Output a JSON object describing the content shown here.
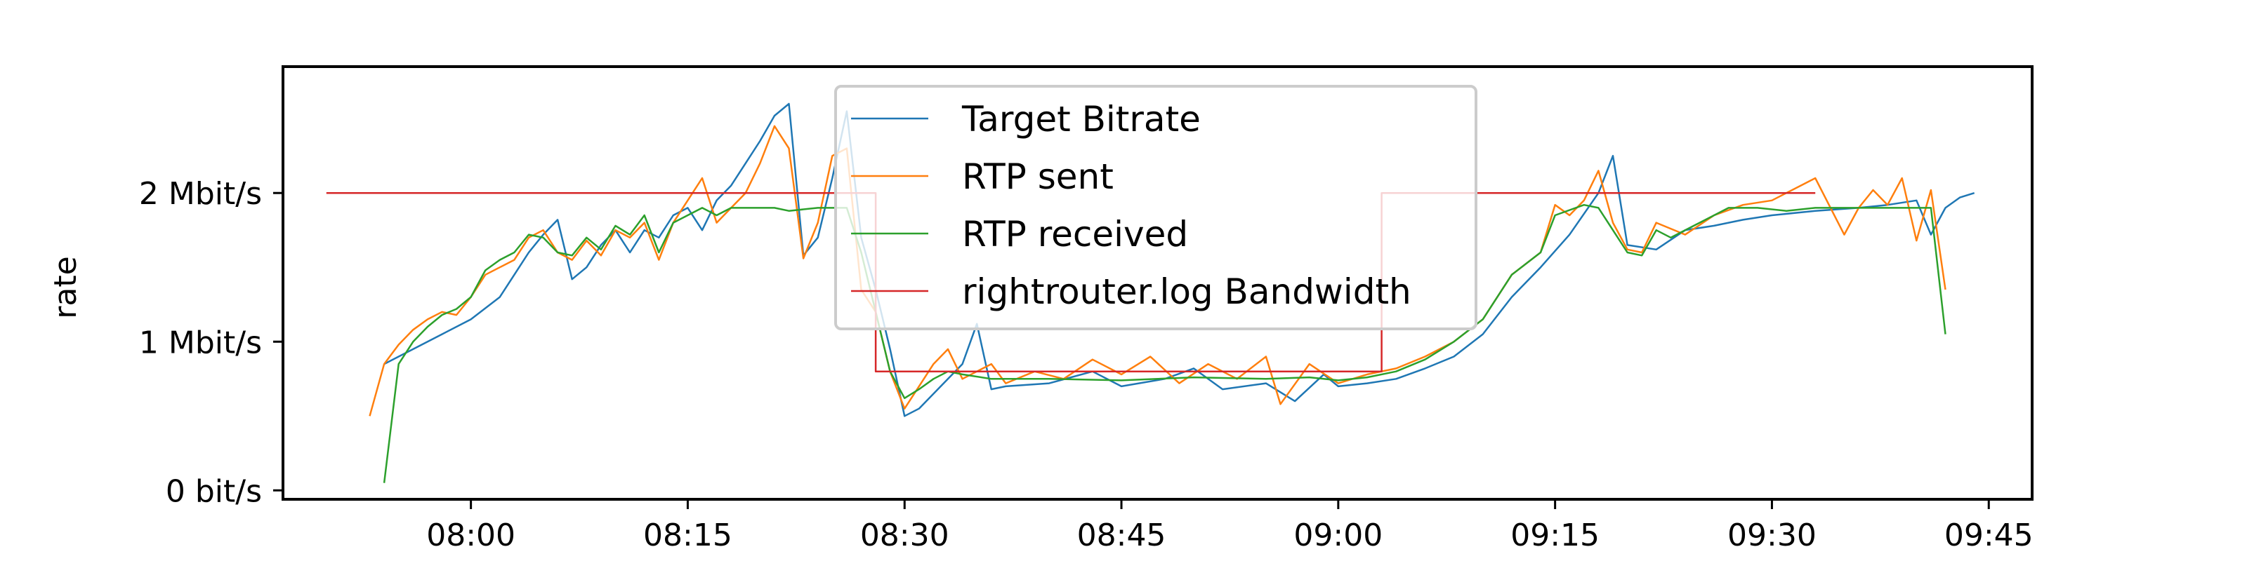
{
  "chart_data": {
    "type": "line",
    "title": "",
    "xlabel": "",
    "ylabel": "rate",
    "x_unit": "time (HH:MM)",
    "xlim": [
      "07:47",
      "09:48"
    ],
    "ylim": [
      -0.06,
      2.85
    ],
    "xticks": [
      {
        "t": "08:00",
        "label": "08:00"
      },
      {
        "t": "08:15",
        "label": "08:15"
      },
      {
        "t": "08:30",
        "label": "08:30"
      },
      {
        "t": "08:45",
        "label": "08:45"
      },
      {
        "t": "09:00",
        "label": "09:00"
      },
      {
        "t": "09:15",
        "label": "09:15"
      },
      {
        "t": "09:30",
        "label": "09:30"
      },
      {
        "t": "09:45",
        "label": "09:45"
      }
    ],
    "yticks": [
      {
        "v": 0,
        "label": "0 bit/s"
      },
      {
        "v": 1,
        "label": "1 Mbit/s"
      },
      {
        "v": 2,
        "label": "2 Mbit/s"
      }
    ],
    "grid": false,
    "legend": {
      "position": "top-center"
    },
    "series": [
      {
        "name": "Target Bitrate",
        "color": "#1f77b4",
        "points": [
          [
            "07:54",
            0.85
          ],
          [
            "07:56",
            0.95
          ],
          [
            "07:58",
            1.05
          ],
          [
            "08:00",
            1.15
          ],
          [
            "08:02",
            1.3
          ],
          [
            "08:03",
            1.45
          ],
          [
            "08:04",
            1.6
          ],
          [
            "08:05",
            1.72
          ],
          [
            "08:06",
            1.82
          ],
          [
            "08:07",
            1.42
          ],
          [
            "08:08",
            1.5
          ],
          [
            "08:09",
            1.65
          ],
          [
            "08:10",
            1.75
          ],
          [
            "08:11",
            1.6
          ],
          [
            "08:12",
            1.75
          ],
          [
            "08:13",
            1.7
          ],
          [
            "08:14",
            1.85
          ],
          [
            "08:15",
            1.9
          ],
          [
            "08:16",
            1.75
          ],
          [
            "08:17",
            1.95
          ],
          [
            "08:18",
            2.05
          ],
          [
            "08:19",
            2.2
          ],
          [
            "08:20",
            2.35
          ],
          [
            "08:21",
            2.52
          ],
          [
            "08:22",
            2.6
          ],
          [
            "08:23",
            1.58
          ],
          [
            "08:24",
            1.7
          ],
          [
            "08:25",
            2.1
          ],
          [
            "08:26",
            2.55
          ],
          [
            "08:27",
            1.7
          ],
          [
            "08:28",
            1.35
          ],
          [
            "08:29",
            0.95
          ],
          [
            "08:30",
            0.5
          ],
          [
            "08:31",
            0.55
          ],
          [
            "08:32",
            0.65
          ],
          [
            "08:33",
            0.75
          ],
          [
            "08:34",
            0.85
          ],
          [
            "08:35",
            1.12
          ],
          [
            "08:36",
            0.68
          ],
          [
            "08:37",
            0.7
          ],
          [
            "08:40",
            0.72
          ],
          [
            "08:43",
            0.8
          ],
          [
            "08:45",
            0.7
          ],
          [
            "08:48",
            0.75
          ],
          [
            "08:50",
            0.82
          ],
          [
            "08:52",
            0.68
          ],
          [
            "08:55",
            0.72
          ],
          [
            "08:57",
            0.6
          ],
          [
            "08:59",
            0.78
          ],
          [
            "09:00",
            0.7
          ],
          [
            "09:02",
            0.72
          ],
          [
            "09:04",
            0.75
          ],
          [
            "09:06",
            0.82
          ],
          [
            "09:08",
            0.9
          ],
          [
            "09:10",
            1.05
          ],
          [
            "09:12",
            1.3
          ],
          [
            "09:14",
            1.5
          ],
          [
            "09:16",
            1.72
          ],
          [
            "09:18",
            2.0
          ],
          [
            "09:19",
            2.25
          ],
          [
            "09:20",
            1.65
          ],
          [
            "09:22",
            1.62
          ],
          [
            "09:24",
            1.75
          ],
          [
            "09:26",
            1.78
          ],
          [
            "09:28",
            1.82
          ],
          [
            "09:30",
            1.85
          ],
          [
            "09:33",
            1.88
          ],
          [
            "09:36",
            1.9
          ],
          [
            "09:38",
            1.92
          ],
          [
            "09:40",
            1.95
          ],
          [
            "09:41",
            1.72
          ],
          [
            "09:42",
            1.9
          ],
          [
            "09:43",
            1.97
          ],
          [
            "09:44",
            2.0
          ]
        ]
      },
      {
        "name": "RTP sent",
        "color": "#ff7f0e",
        "points": [
          [
            "07:53",
            0.5
          ],
          [
            "07:54",
            0.85
          ],
          [
            "07:55",
            0.98
          ],
          [
            "07:56",
            1.08
          ],
          [
            "07:57",
            1.15
          ],
          [
            "07:58",
            1.2
          ],
          [
            "07:59",
            1.18
          ],
          [
            "08:00",
            1.3
          ],
          [
            "08:01",
            1.45
          ],
          [
            "08:02",
            1.5
          ],
          [
            "08:03",
            1.55
          ],
          [
            "08:04",
            1.7
          ],
          [
            "08:05",
            1.75
          ],
          [
            "08:06",
            1.6
          ],
          [
            "08:07",
            1.55
          ],
          [
            "08:08",
            1.68
          ],
          [
            "08:09",
            1.58
          ],
          [
            "08:10",
            1.75
          ],
          [
            "08:11",
            1.7
          ],
          [
            "08:12",
            1.8
          ],
          [
            "08:13",
            1.55
          ],
          [
            "08:14",
            1.8
          ],
          [
            "08:15",
            1.95
          ],
          [
            "08:16",
            2.1
          ],
          [
            "08:17",
            1.8
          ],
          [
            "08:18",
            1.9
          ],
          [
            "08:19",
            2.0
          ],
          [
            "08:20",
            2.2
          ],
          [
            "08:21",
            2.45
          ],
          [
            "08:22",
            2.3
          ],
          [
            "08:23",
            1.56
          ],
          [
            "08:24",
            1.8
          ],
          [
            "08:25",
            2.25
          ],
          [
            "08:26",
            2.3
          ],
          [
            "08:27",
            1.35
          ],
          [
            "08:28",
            1.2
          ],
          [
            "08:29",
            0.8
          ],
          [
            "08:30",
            0.55
          ],
          [
            "08:31",
            0.7
          ],
          [
            "08:32",
            0.85
          ],
          [
            "08:33",
            0.95
          ],
          [
            "08:34",
            0.75
          ],
          [
            "08:35",
            0.8
          ],
          [
            "08:36",
            0.85
          ],
          [
            "08:37",
            0.72
          ],
          [
            "08:39",
            0.8
          ],
          [
            "08:41",
            0.75
          ],
          [
            "08:43",
            0.88
          ],
          [
            "08:45",
            0.78
          ],
          [
            "08:47",
            0.9
          ],
          [
            "08:49",
            0.72
          ],
          [
            "08:51",
            0.85
          ],
          [
            "08:53",
            0.75
          ],
          [
            "08:55",
            0.9
          ],
          [
            "08:56",
            0.58
          ],
          [
            "08:58",
            0.85
          ],
          [
            "09:00",
            0.72
          ],
          [
            "09:02",
            0.78
          ],
          [
            "09:04",
            0.82
          ],
          [
            "09:06",
            0.9
          ],
          [
            "09:08",
            1.0
          ],
          [
            "09:10",
            1.15
          ],
          [
            "09:12",
            1.45
          ],
          [
            "09:14",
            1.6
          ],
          [
            "09:15",
            1.92
          ],
          [
            "09:16",
            1.85
          ],
          [
            "09:17",
            1.95
          ],
          [
            "09:18",
            2.15
          ],
          [
            "09:19",
            1.8
          ],
          [
            "09:20",
            1.62
          ],
          [
            "09:21",
            1.6
          ],
          [
            "09:22",
            1.8
          ],
          [
            "09:24",
            1.72
          ],
          [
            "09:26",
            1.85
          ],
          [
            "09:28",
            1.92
          ],
          [
            "09:30",
            1.95
          ],
          [
            "09:32",
            2.05
          ],
          [
            "09:33",
            2.1
          ],
          [
            "09:35",
            1.72
          ],
          [
            "09:36",
            1.9
          ],
          [
            "09:37",
            2.02
          ],
          [
            "09:38",
            1.92
          ],
          [
            "09:39",
            2.1
          ],
          [
            "09:40",
            1.68
          ],
          [
            "09:41",
            2.02
          ],
          [
            "09:42",
            1.35
          ]
        ]
      },
      {
        "name": "RTP received",
        "color": "#2ca02c",
        "points": [
          [
            "07:54",
            0.05
          ],
          [
            "07:55",
            0.85
          ],
          [
            "07:56",
            1.0
          ],
          [
            "07:57",
            1.1
          ],
          [
            "07:58",
            1.18
          ],
          [
            "07:59",
            1.22
          ],
          [
            "08:00",
            1.3
          ],
          [
            "08:01",
            1.48
          ],
          [
            "08:02",
            1.55
          ],
          [
            "08:03",
            1.6
          ],
          [
            "08:04",
            1.72
          ],
          [
            "08:05",
            1.7
          ],
          [
            "08:06",
            1.6
          ],
          [
            "08:07",
            1.58
          ],
          [
            "08:08",
            1.7
          ],
          [
            "08:09",
            1.62
          ],
          [
            "08:10",
            1.78
          ],
          [
            "08:11",
            1.72
          ],
          [
            "08:12",
            1.85
          ],
          [
            "08:13",
            1.6
          ],
          [
            "08:14",
            1.8
          ],
          [
            "08:15",
            1.85
          ],
          [
            "08:16",
            1.9
          ],
          [
            "08:17",
            1.85
          ],
          [
            "08:18",
            1.9
          ],
          [
            "08:19",
            1.9
          ],
          [
            "08:20",
            1.9
          ],
          [
            "08:21",
            1.9
          ],
          [
            "08:22",
            1.88
          ],
          [
            "08:24",
            1.9
          ],
          [
            "08:26",
            1.9
          ],
          [
            "08:27",
            1.6
          ],
          [
            "08:28",
            1.2
          ],
          [
            "08:29",
            0.8
          ],
          [
            "08:30",
            0.62
          ],
          [
            "08:31",
            0.68
          ],
          [
            "08:32",
            0.75
          ],
          [
            "08:33",
            0.8
          ],
          [
            "08:34",
            0.78
          ],
          [
            "08:36",
            0.75
          ],
          [
            "08:40",
            0.75
          ],
          [
            "08:45",
            0.74
          ],
          [
            "08:50",
            0.76
          ],
          [
            "08:55",
            0.75
          ],
          [
            "08:58",
            0.76
          ],
          [
            "09:00",
            0.74
          ],
          [
            "09:02",
            0.76
          ],
          [
            "09:04",
            0.8
          ],
          [
            "09:06",
            0.88
          ],
          [
            "09:08",
            1.0
          ],
          [
            "09:10",
            1.15
          ],
          [
            "09:12",
            1.45
          ],
          [
            "09:14",
            1.6
          ],
          [
            "09:15",
            1.85
          ],
          [
            "09:17",
            1.92
          ],
          [
            "09:18",
            1.9
          ],
          [
            "09:19",
            1.75
          ],
          [
            "09:20",
            1.6
          ],
          [
            "09:21",
            1.58
          ],
          [
            "09:22",
            1.75
          ],
          [
            "09:23",
            1.7
          ],
          [
            "09:25",
            1.8
          ],
          [
            "09:27",
            1.9
          ],
          [
            "09:29",
            1.9
          ],
          [
            "09:31",
            1.88
          ],
          [
            "09:33",
            1.9
          ],
          [
            "09:35",
            1.9
          ],
          [
            "09:38",
            1.9
          ],
          [
            "09:41",
            1.9
          ],
          [
            "09:42",
            1.05
          ]
        ]
      },
      {
        "name": "rightrouter.log Bandwidth",
        "color": "#d62728",
        "points": [
          [
            "07:50",
            2.0
          ],
          [
            "08:28",
            2.0
          ],
          [
            "08:28",
            0.8
          ],
          [
            "09:03",
            0.8
          ],
          [
            "09:03",
            2.0
          ],
          [
            "09:33",
            2.0
          ]
        ]
      }
    ]
  }
}
